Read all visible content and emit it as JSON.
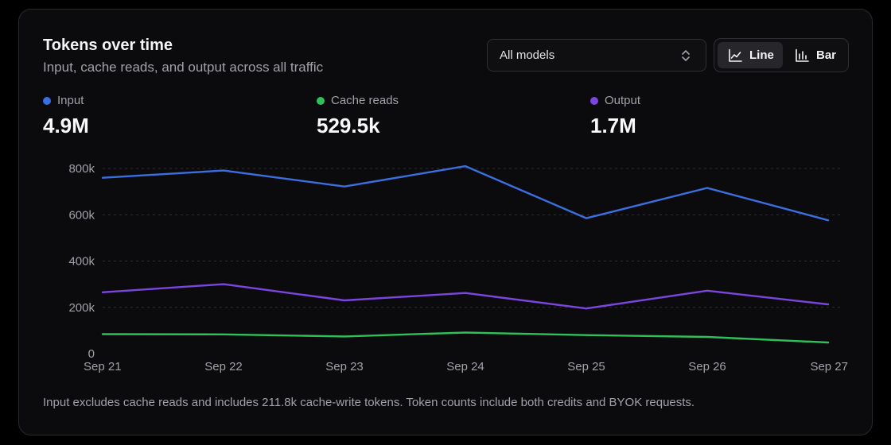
{
  "header": {
    "title": "Tokens over time",
    "subtitle": "Input, cache reads, and output across all traffic"
  },
  "controls": {
    "model_select": {
      "value": "All models",
      "icon": "chevrons-up-down-icon"
    },
    "chart_type": {
      "options": [
        {
          "label": "Line",
          "icon": "line-chart-icon",
          "active": true
        },
        {
          "label": "Bar",
          "icon": "bar-chart-icon",
          "active": false
        }
      ]
    }
  },
  "stats": [
    {
      "name": "Input",
      "value": "4.9M",
      "color": "#3b6fe0"
    },
    {
      "name": "Cache reads",
      "value": "529.5k",
      "color": "#2fbf5b"
    },
    {
      "name": "Output",
      "value": "1.7M",
      "color": "#7c45e0"
    }
  ],
  "chart_data": {
    "type": "line",
    "x": [
      "Sep 21",
      "Sep 22",
      "Sep 23",
      "Sep 24",
      "Sep 25",
      "Sep 26",
      "Sep 27"
    ],
    "series": [
      {
        "name": "Input",
        "color": "#3b6fe0",
        "values": [
          760000,
          791000,
          722000,
          810000,
          585000,
          716000,
          576000
        ]
      },
      {
        "name": "Cache reads",
        "color": "#2fbf5b",
        "values": [
          84000,
          83000,
          74000,
          91000,
          80000,
          72000,
          48000
        ]
      },
      {
        "name": "Output",
        "color": "#7c45e0",
        "values": [
          265000,
          300000,
          230000,
          262000,
          195000,
          272000,
          213000
        ]
      }
    ],
    "yticks": [
      0,
      200000,
      400000,
      600000,
      800000
    ],
    "ytick_labels": [
      "0",
      "200k",
      "400k",
      "600k",
      "800k"
    ],
    "ylim": [
      0,
      800000
    ],
    "grid": true,
    "legend": "top"
  },
  "footnote": "Input excludes cache reads and includes 211.8k cache-write tokens. Token counts include both credits and BYOK requests."
}
